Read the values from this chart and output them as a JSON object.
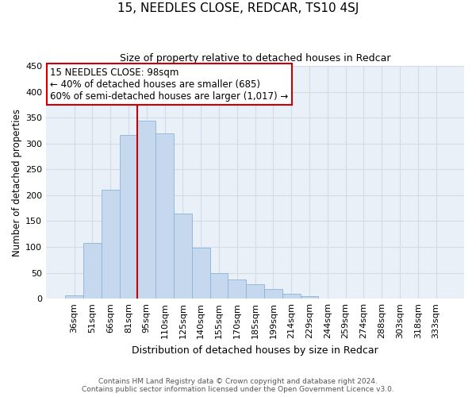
{
  "title": "15, NEEDLES CLOSE, REDCAR, TS10 4SJ",
  "subtitle": "Size of property relative to detached houses in Redcar",
  "xlabel": "Distribution of detached houses by size in Redcar",
  "ylabel": "Number of detached properties",
  "bar_labels": [
    "36sqm",
    "51sqm",
    "66sqm",
    "81sqm",
    "95sqm",
    "110sqm",
    "125sqm",
    "140sqm",
    "155sqm",
    "170sqm",
    "185sqm",
    "199sqm",
    "214sqm",
    "229sqm",
    "244sqm",
    "259sqm",
    "274sqm",
    "288sqm",
    "303sqm",
    "318sqm",
    "333sqm"
  ],
  "bar_values": [
    6,
    107,
    210,
    317,
    344,
    320,
    165,
    99,
    50,
    37,
    28,
    18,
    9,
    5,
    0,
    0,
    0,
    0,
    0,
    0,
    0
  ],
  "bar_color": "#c5d8ed",
  "bar_edge_color": "#8ab4d4",
  "vline_color": "#cc0000",
  "annotation_title": "15 NEEDLES CLOSE: 98sqm",
  "annotation_line1": "← 40% of detached houses are smaller (685)",
  "annotation_line2": "60% of semi-detached houses are larger (1,017) →",
  "annotation_box_facecolor": "#ffffff",
  "annotation_box_edgecolor": "#cc0000",
  "ylim": [
    0,
    450
  ],
  "yticks": [
    0,
    50,
    100,
    150,
    200,
    250,
    300,
    350,
    400,
    450
  ],
  "footnote1": "Contains HM Land Registry data © Crown copyright and database right 2024.",
  "footnote2": "Contains public sector information licensed under the Open Government Licence v3.0.",
  "grid_color": "#d0dce8",
  "bg_color": "#eaf0f8"
}
